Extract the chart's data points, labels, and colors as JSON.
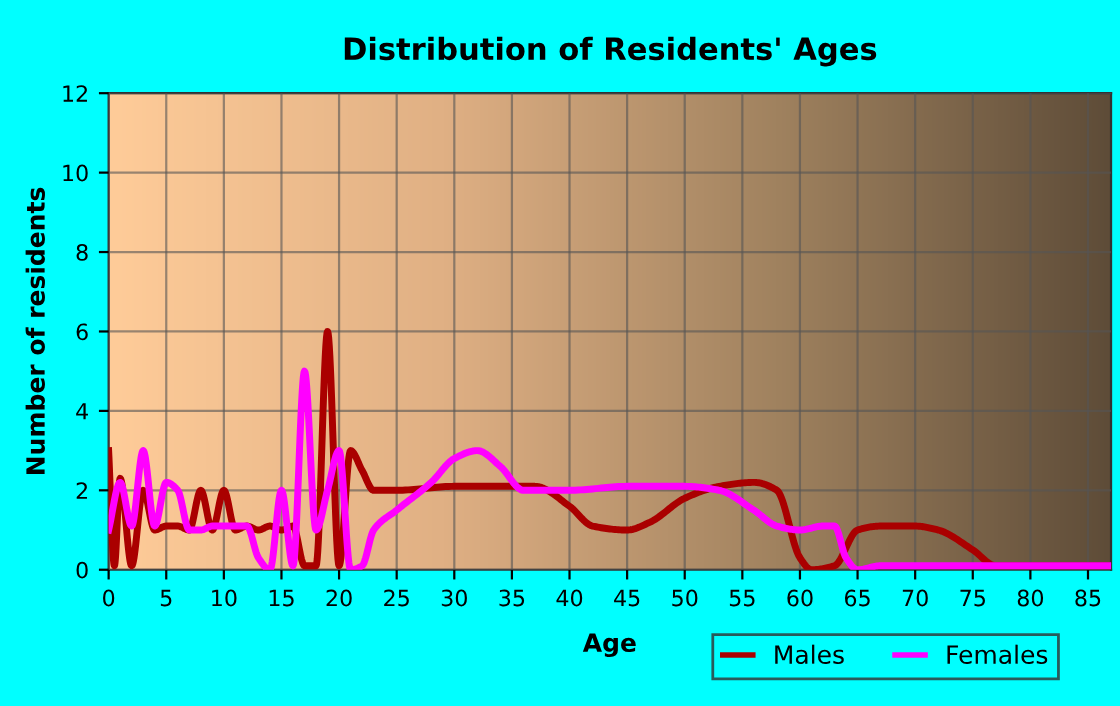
{
  "chart_data": {
    "type": "line",
    "title": "Distribution of Residents' Ages",
    "xlabel": "Age",
    "ylabel": "Number of residents",
    "xlim": [
      0,
      87
    ],
    "xticks": [
      0,
      5,
      10,
      15,
      20,
      25,
      30,
      35,
      40,
      45,
      50,
      55,
      60,
      65,
      70,
      75,
      80,
      85
    ],
    "ylim": [
      0,
      12
    ],
    "yticks": [
      0,
      2,
      4,
      6,
      8,
      10,
      12
    ],
    "grid": true,
    "legend": "bottom right",
    "line_style": "solid",
    "marker": "none",
    "series": [
      {
        "name": "Males",
        "color": "#aa0000",
        "x": [
          0,
          0.5,
          1,
          2,
          3,
          4,
          5,
          6,
          7,
          8,
          9,
          10,
          11,
          12,
          13,
          14,
          15,
          16,
          17,
          18,
          19,
          20,
          21,
          22,
          23,
          25,
          30,
          35,
          37,
          40,
          42,
          45,
          47,
          50,
          53,
          56,
          58,
          60,
          61,
          63,
          65,
          67,
          70,
          72,
          75,
          77,
          80,
          87
        ],
        "values": [
          3.0,
          0.1,
          2.3,
          0.1,
          2.0,
          1.0,
          1.1,
          1.1,
          1.0,
          2.0,
          1.0,
          2.0,
          1.0,
          1.1,
          1.0,
          1.1,
          1.0,
          1.1,
          0.1,
          0.1,
          6.0,
          0.1,
          3.0,
          2.5,
          2.0,
          2.0,
          2.1,
          2.1,
          2.1,
          1.6,
          1.1,
          1.0,
          1.2,
          1.8,
          2.1,
          2.2,
          2.0,
          0.3,
          0.0,
          0.1,
          1.0,
          1.1,
          1.1,
          1.0,
          0.5,
          0.1,
          0.1,
          0.1
        ]
      },
      {
        "name": "Females",
        "color": "#ff00ff",
        "x": [
          0,
          1,
          2,
          3,
          4,
          5,
          6,
          7,
          8,
          9,
          10,
          12,
          13,
          14,
          15,
          16,
          17,
          18,
          19,
          20,
          21,
          22,
          23,
          25,
          28,
          30,
          32,
          34,
          36,
          40,
          45,
          50,
          53,
          56,
          58,
          60,
          62,
          63,
          64,
          65,
          67,
          75,
          87
        ],
        "values": [
          1.0,
          2.2,
          1.1,
          3.0,
          1.1,
          2.2,
          2.0,
          1.0,
          1.0,
          1.1,
          1.1,
          1.1,
          0.3,
          0.0,
          2.0,
          0.1,
          5.0,
          1.0,
          2.0,
          3.0,
          0.0,
          0.1,
          1.0,
          1.5,
          2.2,
          2.8,
          3.0,
          2.6,
          2.0,
          2.0,
          2.1,
          2.1,
          2.0,
          1.5,
          1.1,
          1.0,
          1.1,
          1.1,
          0.3,
          0.0,
          0.1,
          0.1,
          0.1
        ]
      }
    ]
  }
}
